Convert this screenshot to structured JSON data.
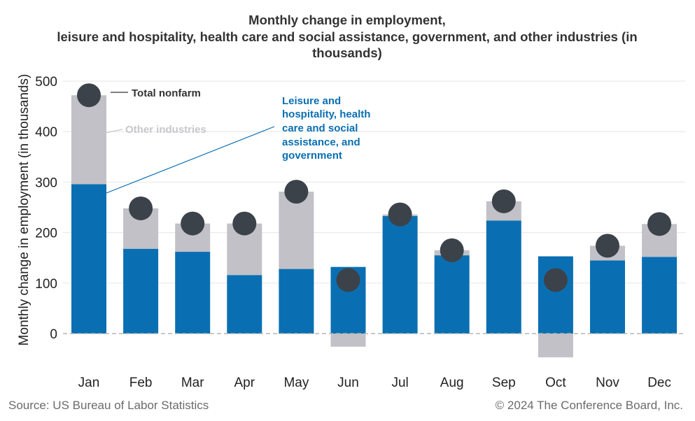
{
  "chart_data": {
    "type": "bar",
    "stacked": true,
    "title_lines": [
      "Monthly change in employment,",
      "leisure and hospitality, health care and social assistance, government, and other industries (in",
      "thousands)"
    ],
    "ylabel": "Monthly change in employment (in thousands)",
    "xlabel": "",
    "ylim": [
      -50,
      500
    ],
    "yticks": [
      0,
      100,
      200,
      300,
      400,
      500
    ],
    "grid": true,
    "categories": [
      "Jan",
      "Feb",
      "Mar",
      "Apr",
      "May",
      "Jun",
      "Jul",
      "Aug",
      "Sep",
      "Oct",
      "Nov",
      "Dec"
    ],
    "series": [
      {
        "name": "Leisure and hospitality, health care and social assistance, and government",
        "color": "#0a6fb2",
        "values": [
          296,
          168,
          162,
          116,
          128,
          132,
          233,
          155,
          224,
          153,
          145,
          152
        ]
      },
      {
        "name": "Other industries",
        "color": "#c1c1c7",
        "values": [
          176,
          80,
          56,
          102,
          153,
          -26,
          3,
          10,
          38,
          -47,
          29,
          65
        ]
      }
    ],
    "markers": {
      "name": "Total nonfarm",
      "color": "#3c424a",
      "values": [
        472,
        248,
        218,
        218,
        281,
        106,
        236,
        165,
        262,
        106,
        174,
        217
      ]
    },
    "annotations": {
      "total": "Total nonfarm",
      "other": "Other industries",
      "leisure_lines": [
        "Leisure and",
        "hospitality, health",
        "care and social",
        "assistance, and",
        "government"
      ]
    }
  },
  "footer": {
    "source": "Source: US Bureau of Labor Statistics",
    "copyright": "© 2024 The Conference Board, Inc."
  }
}
